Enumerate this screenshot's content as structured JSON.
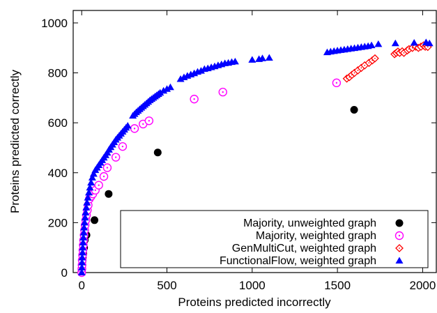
{
  "chart_data": {
    "type": "scatter",
    "xlabel": "Proteins predicted incorrectly",
    "ylabel": "Proteins predicted correctly",
    "xlim": [
      -50,
      2080
    ],
    "ylim": [
      0,
      1050
    ],
    "x_ticks": [
      0,
      500,
      1000,
      1500,
      2000
    ],
    "y_ticks": [
      0,
      200,
      400,
      600,
      800,
      1000
    ],
    "grid": false,
    "legend_position": "bottom-right",
    "series": [
      {
        "name": "Majority, unweighted graph",
        "marker": "filled-circle",
        "color": "#000000",
        "points": [
          [
            0,
            0
          ],
          [
            0,
            10
          ],
          [
            1,
            20
          ],
          [
            2,
            30
          ],
          [
            4,
            45
          ],
          [
            6,
            60
          ],
          [
            9,
            75
          ],
          [
            14,
            100
          ],
          [
            18,
            130
          ],
          [
            28,
            150
          ],
          [
            75,
            210
          ],
          [
            158,
            315
          ],
          [
            446,
            481
          ],
          [
            1598,
            652
          ]
        ]
      },
      {
        "name": "Majority, weighted graph",
        "marker": "open-circle",
        "color": "#ff00ff",
        "points": [
          [
            0,
            0
          ],
          [
            1,
            15
          ],
          [
            2,
            30
          ],
          [
            3,
            50
          ],
          [
            5,
            70
          ],
          [
            7,
            90
          ],
          [
            9,
            110
          ],
          [
            11,
            130
          ],
          [
            14,
            150
          ],
          [
            17,
            170
          ],
          [
            20,
            190
          ],
          [
            24,
            210
          ],
          [
            28,
            230
          ],
          [
            33,
            250
          ],
          [
            38,
            270
          ],
          [
            45,
            295
          ],
          [
            55,
            305
          ],
          [
            65,
            315
          ],
          [
            80,
            330
          ],
          [
            100,
            350
          ],
          [
            130,
            385
          ],
          [
            150,
            420
          ],
          [
            200,
            462
          ],
          [
            240,
            505
          ],
          [
            310,
            577
          ],
          [
            360,
            595
          ],
          [
            395,
            608
          ],
          [
            660,
            695
          ],
          [
            828,
            723
          ],
          [
            1495,
            760
          ]
        ]
      },
      {
        "name": "GenMultiCut, weighted graph",
        "marker": "open-diamond",
        "color": "#ff0000",
        "points": [
          [
            1555,
            777
          ],
          [
            1570,
            783
          ],
          [
            1585,
            792
          ],
          [
            1600,
            800
          ],
          [
            1620,
            810
          ],
          [
            1640,
            820
          ],
          [
            1660,
            830
          ],
          [
            1685,
            840
          ],
          [
            1705,
            850
          ],
          [
            1720,
            858
          ],
          [
            1835,
            875
          ],
          [
            1845,
            880
          ],
          [
            1855,
            885
          ],
          [
            1865,
            880
          ],
          [
            1880,
            886
          ],
          [
            1890,
            880
          ],
          [
            1910,
            890
          ],
          [
            1920,
            895
          ],
          [
            1940,
            900
          ],
          [
            1960,
            905
          ],
          [
            1975,
            900
          ],
          [
            1990,
            905
          ],
          [
            2005,
            910
          ],
          [
            2015,
            905
          ],
          [
            2025,
            908
          ],
          [
            2030,
            904
          ]
        ]
      },
      {
        "name": "FunctionalFlow, weighted graph",
        "marker": "filled-triangle",
        "color": "#0000ff",
        "points": [
          [
            0,
            0
          ],
          [
            1,
            20
          ],
          [
            2,
            40
          ],
          [
            3,
            60
          ],
          [
            5,
            80
          ],
          [
            6,
            100
          ],
          [
            8,
            120
          ],
          [
            10,
            140
          ],
          [
            12,
            160
          ],
          [
            14,
            180
          ],
          [
            17,
            200
          ],
          [
            20,
            220
          ],
          [
            23,
            240
          ],
          [
            27,
            260
          ],
          [
            31,
            280
          ],
          [
            36,
            300
          ],
          [
            42,
            320
          ],
          [
            48,
            340
          ],
          [
            55,
            360
          ],
          [
            62,
            380
          ],
          [
            70,
            395
          ],
          [
            80,
            410
          ],
          [
            90,
            420
          ],
          [
            100,
            430
          ],
          [
            110,
            440
          ],
          [
            120,
            450
          ],
          [
            130,
            460
          ],
          [
            140,
            470
          ],
          [
            150,
            480
          ],
          [
            160,
            492
          ],
          [
            170,
            502
          ],
          [
            180,
            512
          ],
          [
            190,
            522
          ],
          [
            200,
            532
          ],
          [
            210,
            540
          ],
          [
            220,
            548
          ],
          [
            230,
            556
          ],
          [
            240,
            564
          ],
          [
            250,
            572
          ],
          [
            260,
            580
          ],
          [
            270,
            588
          ],
          [
            300,
            628
          ],
          [
            310,
            635
          ],
          [
            320,
            642
          ],
          [
            330,
            648
          ],
          [
            340,
            654
          ],
          [
            350,
            660
          ],
          [
            360,
            666
          ],
          [
            370,
            672
          ],
          [
            380,
            678
          ],
          [
            390,
            684
          ],
          [
            400,
            690
          ],
          [
            410,
            695
          ],
          [
            420,
            700
          ],
          [
            430,
            705
          ],
          [
            440,
            710
          ],
          [
            450,
            715
          ],
          [
            460,
            720
          ],
          [
            480,
            728
          ],
          [
            500,
            735
          ],
          [
            520,
            742
          ],
          [
            580,
            775
          ],
          [
            600,
            782
          ],
          [
            620,
            788
          ],
          [
            640,
            793
          ],
          [
            660,
            798
          ],
          [
            680,
            804
          ],
          [
            700,
            808
          ],
          [
            720,
            815
          ],
          [
            740,
            818
          ],
          [
            760,
            822
          ],
          [
            780,
            826
          ],
          [
            800,
            830
          ],
          [
            820,
            834
          ],
          [
            840,
            838
          ],
          [
            860,
            840
          ],
          [
            880,
            843
          ],
          [
            900,
            845
          ],
          [
            1000,
            852
          ],
          [
            1040,
            855
          ],
          [
            1060,
            858
          ],
          [
            1100,
            860
          ],
          [
            1440,
            882
          ],
          [
            1460,
            885
          ],
          [
            1480,
            887
          ],
          [
            1500,
            889
          ],
          [
            1520,
            891
          ],
          [
            1540,
            893
          ],
          [
            1560,
            895
          ],
          [
            1580,
            897
          ],
          [
            1600,
            899
          ],
          [
            1620,
            901
          ],
          [
            1640,
            903
          ],
          [
            1660,
            905
          ],
          [
            1680,
            907
          ],
          [
            1700,
            910
          ],
          [
            1740,
            915
          ],
          [
            1840,
            918
          ],
          [
            1950,
            920
          ],
          [
            2020,
            922
          ],
          [
            2040,
            918
          ]
        ]
      }
    ]
  }
}
